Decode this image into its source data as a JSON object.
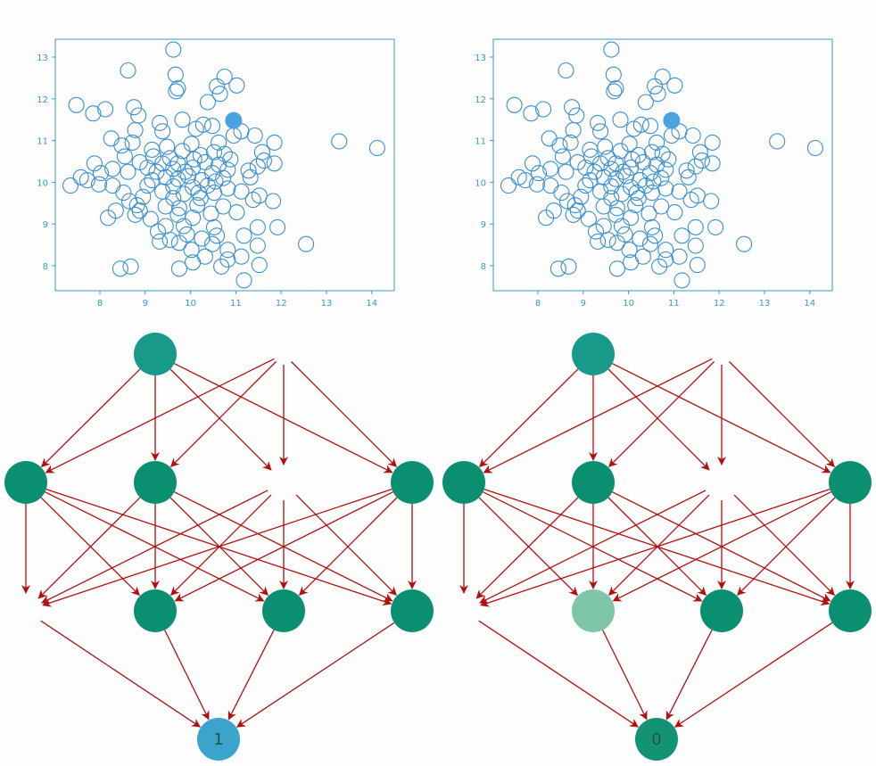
{
  "colors": {
    "axis": "#3a9bbf",
    "point_stroke": "#3a8fcf",
    "highlight_point": "#4aa3df",
    "node_fill": "#0a9070",
    "node_faded": "#7ec5a8",
    "output_node_one": "#3aa4cc",
    "output_node_zero": "#139373",
    "output_label": "#2a4d4d",
    "arrow": "#b01010"
  },
  "panels": [
    {
      "scatter": {
        "x_ticks": [
          "8",
          "9",
          "10",
          "11",
          "12",
          "13",
          "14"
        ],
        "y_ticks": [
          "8",
          "9",
          "10",
          "11",
          "12",
          "13"
        ],
        "highlight": [
          10.95,
          11.48
        ]
      },
      "network": {
        "hidden2_faded": [
          false,
          false,
          false,
          false
        ],
        "output_label": "1",
        "output_color": "output_node_one"
      }
    },
    {
      "scatter": {
        "x_ticks": [
          "8",
          "9",
          "10",
          "11",
          "12",
          "13",
          "14"
        ],
        "y_ticks": [
          "8",
          "9",
          "10",
          "11",
          "12",
          "13"
        ],
        "highlight": [
          10.95,
          11.48
        ]
      },
      "network": {
        "hidden2_faded": [
          false,
          true,
          false,
          false
        ],
        "output_label": "0",
        "output_color": "output_node_zero"
      }
    }
  ],
  "scatter_points": [
    [
      9.62,
      13.18
    ],
    [
      8.62,
      12.68
    ],
    [
      9.67,
      12.58
    ],
    [
      10.75,
      12.53
    ],
    [
      9.72,
      12.25
    ],
    [
      11.02,
      12.32
    ],
    [
      10.58,
      12.3
    ],
    [
      9.68,
      12.18
    ],
    [
      10.65,
      12.12
    ],
    [
      7.48,
      11.85
    ],
    [
      8.12,
      11.75
    ],
    [
      10.38,
      11.92
    ],
    [
      7.85,
      11.65
    ],
    [
      8.75,
      11.8
    ],
    [
      8.85,
      11.6
    ],
    [
      9.82,
      11.5
    ],
    [
      9.32,
      11.42
    ],
    [
      10.28,
      11.38
    ],
    [
      8.78,
      11.25
    ],
    [
      10.12,
      11.28
    ],
    [
      10.48,
      11.35
    ],
    [
      9.38,
      11.22
    ],
    [
      11.12,
      11.22
    ],
    [
      11.42,
      11.12
    ],
    [
      8.25,
      11.05
    ],
    [
      13.28,
      10.98
    ],
    [
      14.12,
      10.82
    ],
    [
      9.48,
      10.85
    ],
    [
      10.02,
      10.92
    ],
    [
      11.85,
      10.95
    ],
    [
      11.58,
      10.72
    ],
    [
      8.72,
      10.95
    ],
    [
      8.48,
      10.88
    ],
    [
      9.82,
      10.75
    ],
    [
      10.52,
      10.72
    ],
    [
      10.75,
      10.68
    ],
    [
      10.22,
      10.65
    ],
    [
      9.18,
      10.62
    ],
    [
      9.55,
      10.58
    ],
    [
      10.08,
      10.55
    ],
    [
      11.62,
      10.52
    ],
    [
      8.88,
      10.48
    ],
    [
      7.88,
      10.45
    ],
    [
      9.38,
      10.45
    ],
    [
      9.72,
      10.45
    ],
    [
      10.32,
      10.48
    ],
    [
      10.62,
      10.42
    ],
    [
      11.85,
      10.45
    ],
    [
      11.48,
      10.38
    ],
    [
      8.28,
      10.32
    ],
    [
      9.05,
      10.35
    ],
    [
      9.62,
      10.32
    ],
    [
      10.05,
      10.35
    ],
    [
      10.82,
      10.3
    ],
    [
      8.62,
      10.25
    ],
    [
      8.02,
      10.22
    ],
    [
      9.25,
      10.25
    ],
    [
      9.88,
      10.25
    ],
    [
      10.48,
      10.22
    ],
    [
      11.28,
      10.28
    ],
    [
      11.32,
      10.12
    ],
    [
      7.58,
      10.12
    ],
    [
      7.72,
      10.05
    ],
    [
      9.15,
      10.05
    ],
    [
      9.45,
      10.12
    ],
    [
      9.72,
      10.08
    ],
    [
      10.25,
      10.05
    ],
    [
      10.55,
      10.02
    ],
    [
      10.72,
      10.1
    ],
    [
      7.35,
      9.92
    ],
    [
      7.98,
      9.95
    ],
    [
      8.28,
      9.92
    ],
    [
      9.05,
      9.92
    ],
    [
      9.62,
      9.9
    ],
    [
      10.05,
      9.88
    ],
    [
      10.38,
      9.92
    ],
    [
      10.82,
      9.85
    ],
    [
      9.38,
      9.78
    ],
    [
      9.85,
      9.72
    ],
    [
      10.52,
      9.75
    ],
    [
      11.12,
      9.78
    ],
    [
      8.52,
      9.75
    ],
    [
      8.95,
      9.65
    ],
    [
      9.62,
      9.62
    ],
    [
      10.22,
      9.62
    ],
    [
      11.52,
      9.68
    ],
    [
      11.38,
      9.58
    ],
    [
      11.82,
      9.55
    ],
    [
      8.65,
      9.55
    ],
    [
      8.82,
      9.45
    ],
    [
      9.45,
      9.42
    ],
    [
      9.75,
      9.38
    ],
    [
      10.15,
      9.45
    ],
    [
      10.72,
      9.42
    ],
    [
      8.35,
      9.32
    ],
    [
      8.88,
      9.32
    ],
    [
      8.78,
      9.22
    ],
    [
      9.72,
      9.22
    ],
    [
      10.45,
      9.25
    ],
    [
      11.02,
      9.28
    ],
    [
      8.18,
      9.15
    ],
    [
      9.12,
      9.12
    ],
    [
      10.05,
      9.15
    ],
    [
      9.45,
      8.95
    ],
    [
      9.85,
      8.95
    ],
    [
      10.52,
      8.92
    ],
    [
      11.48,
      8.92
    ],
    [
      11.92,
      8.92
    ],
    [
      9.28,
      8.82
    ],
    [
      9.92,
      8.75
    ],
    [
      10.25,
      8.65
    ],
    [
      10.58,
      8.72
    ],
    [
      11.18,
      8.72
    ],
    [
      9.32,
      8.58
    ],
    [
      9.55,
      8.62
    ],
    [
      9.75,
      8.55
    ],
    [
      10.48,
      8.52
    ],
    [
      11.48,
      8.48
    ],
    [
      12.55,
      8.52
    ],
    [
      10.82,
      8.38
    ],
    [
      10.02,
      8.38
    ],
    [
      10.32,
      8.22
    ],
    [
      10.82,
      8.15
    ],
    [
      11.12,
      8.22
    ],
    [
      10.05,
      8.08
    ],
    [
      10.68,
      7.98
    ],
    [
      8.45,
      7.93
    ],
    [
      8.68,
      7.98
    ],
    [
      9.75,
      7.93
    ],
    [
      11.52,
      8.02
    ],
    [
      11.18,
      7.65
    ],
    [
      10.62,
      10.95
    ],
    [
      10.95,
      11.12
    ],
    [
      9.15,
      10.78
    ],
    [
      10.88,
      10.55
    ],
    [
      9.95,
      10.15
    ],
    [
      8.55,
      10.62
    ],
    [
      10.18,
      9.75
    ]
  ]
}
